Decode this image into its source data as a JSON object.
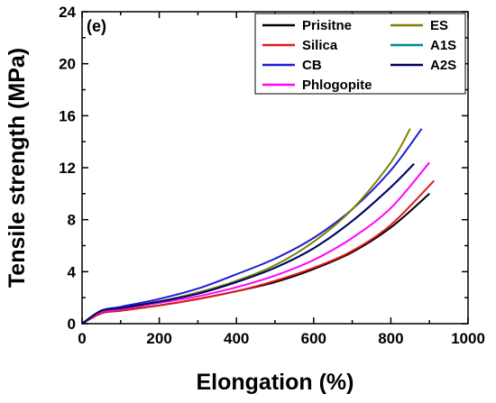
{
  "chart_data": {
    "type": "line",
    "panel_label": "(e)",
    "xlabel": "Elongation (%)",
    "ylabel": "Tensile strength (MPa)",
    "xlim": [
      0,
      1000
    ],
    "ylim": [
      0,
      24
    ],
    "xticks": [
      0,
      200,
      400,
      600,
      800,
      1000
    ],
    "yticks": [
      0,
      4,
      8,
      12,
      16,
      20,
      24
    ],
    "grid": false,
    "legend_position": "top-right",
    "series": [
      {
        "name": "Prisitne",
        "color": "#000000",
        "x": [
          0,
          50,
          100,
          200,
          300,
          400,
          500,
          600,
          700,
          800,
          900
        ],
        "y": [
          0,
          0.8,
          1.0,
          1.4,
          1.9,
          2.5,
          3.2,
          4.2,
          5.5,
          7.4,
          10.0
        ]
      },
      {
        "name": "Silica",
        "color": "#e31a1c",
        "x": [
          0,
          50,
          100,
          200,
          300,
          400,
          500,
          600,
          700,
          800,
          912
        ],
        "y": [
          0,
          0.8,
          1.0,
          1.4,
          1.9,
          2.5,
          3.3,
          4.3,
          5.6,
          7.6,
          11.0
        ]
      },
      {
        "name": "CB",
        "color": "#1c1cd6",
        "x": [
          0,
          50,
          100,
          200,
          300,
          400,
          500,
          600,
          700,
          800,
          880
        ],
        "y": [
          0,
          1.0,
          1.3,
          1.9,
          2.7,
          3.8,
          5.0,
          6.6,
          8.8,
          11.8,
          15.0
        ]
      },
      {
        "name": "Phlogopite",
        "color": "#ff00ff",
        "x": [
          0,
          50,
          100,
          200,
          300,
          400,
          500,
          600,
          700,
          800,
          900
        ],
        "y": [
          0,
          0.9,
          1.1,
          1.6,
          2.1,
          2.8,
          3.7,
          4.9,
          6.6,
          8.9,
          12.4
        ]
      },
      {
        "name": "ES",
        "color": "#808000",
        "x": [
          0,
          50,
          100,
          200,
          300,
          400,
          500,
          600,
          700,
          800,
          850
        ],
        "y": [
          0,
          1.0,
          1.2,
          1.7,
          2.4,
          3.3,
          4.5,
          6.3,
          8.8,
          12.4,
          15.0
        ]
      },
      {
        "name": "A1S",
        "color": "#008b8b",
        "x": [
          0,
          50,
          100,
          200,
          300,
          400,
          500,
          600,
          700,
          800,
          860
        ],
        "y": [
          0,
          1.0,
          1.2,
          1.7,
          2.3,
          3.2,
          4.3,
          5.8,
          7.9,
          10.5,
          12.3
        ]
      },
      {
        "name": "A2S",
        "color": "#000066",
        "x": [
          0,
          50,
          100,
          200,
          300,
          400,
          500,
          600,
          700,
          800,
          860
        ],
        "y": [
          0,
          1.0,
          1.2,
          1.7,
          2.3,
          3.2,
          4.3,
          5.8,
          7.9,
          10.5,
          12.3
        ]
      }
    ]
  }
}
